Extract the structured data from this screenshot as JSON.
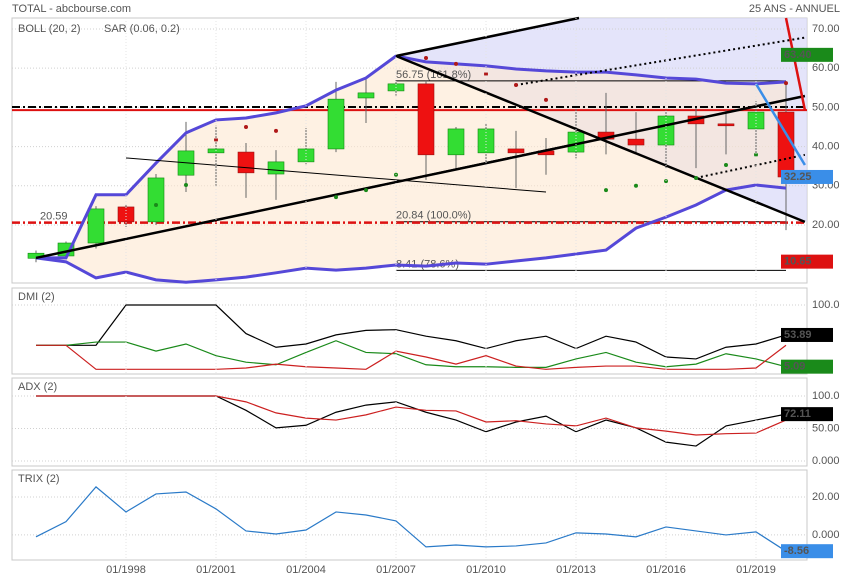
{
  "header": {
    "left": "TOTAL - abcbourse.com",
    "right": "25 ANS - ANNUEL"
  },
  "chart_data": [
    {
      "type": "candlestick",
      "open": [
        11.5,
        12.1,
        15.4,
        24.6,
        20.8,
        32.7,
        38.4,
        38.6,
        33.0,
        36.1,
        39.4,
        52.4,
        54.2,
        56.0,
        37.9,
        38.4,
        39.4,
        38.9,
        38.6,
        43.7,
        41.9,
        40.4,
        47.8,
        45.8,
        44.5,
        48.8
      ],
      "high": [
        13.5,
        15.8,
        24.8,
        25.2,
        33.0,
        46.3,
        45.3,
        40.9,
        39.1,
        44.7,
        56.5,
        57.5,
        57.0,
        56.75,
        45.0,
        45.8,
        44.0,
        42.2,
        49.6,
        53.7,
        48.8,
        49.3,
        49.8,
        49.3,
        51.6,
        56.5
      ],
      "low": [
        10.5,
        11.5,
        14.0,
        19.5,
        20.0,
        28.4,
        30.0,
        26.9,
        26.4,
        35.5,
        38.6,
        46.0,
        53.0,
        31.5,
        34.0,
        35.6,
        29.4,
        32.8,
        37.0,
        38.0,
        38.0,
        34.5,
        34.5,
        38.0,
        38.0,
        18.7
      ],
      "close": [
        12.8,
        15.4,
        24.1,
        20.8,
        32.0,
        38.9,
        39.4,
        33.3,
        36.1,
        39.4,
        52.1,
        53.7,
        56.0,
        37.9,
        44.5,
        44.5,
        38.4,
        37.9,
        43.7,
        41.9,
        40.4,
        47.8,
        45.8,
        45.3,
        48.8,
        32.25
      ],
      "up_color": "#33dd33",
      "down_color": "#ee1111",
      "bollinger": {
        "name": "BOLL (20, 2)",
        "color": "#5548d8",
        "upper": [
          11.6,
          11.6,
          27.7,
          27.7,
          35.8,
          43.5,
          46.8,
          47.3,
          48.6,
          50.4,
          54.4,
          57.5,
          63.1,
          61.6,
          61.1,
          60.6,
          59.8,
          59.3,
          59.0,
          59.0,
          58.3,
          57.5,
          57.2,
          56.2,
          56.0,
          56.5
        ],
        "lower": [
          11.6,
          10.6,
          6.5,
          8.0,
          6.0,
          5.4,
          6.0,
          6.7,
          7.8,
          9.0,
          8.5,
          9.0,
          9.8,
          9.5,
          10.3,
          10.0,
          10.8,
          11.6,
          12.6,
          13.6,
          19.2,
          22.0,
          25.1,
          28.9,
          30.2,
          29.4
        ]
      },
      "sar": {
        "name": "SAR (0.06, 0.2)",
        "color": "#cc2222",
        "values": [
          null,
          null,
          null,
          null,
          25.1,
          30.2,
          41.7,
          45.0,
          44.0,
          null,
          27.1,
          28.9,
          32.8,
          62.6,
          61.1,
          58.5,
          55.7,
          51.9,
          null,
          28.9,
          30.0,
          31.2,
          32.0,
          35.3,
          37.9,
          56.2
        ],
        "point_colors": [
          null,
          null,
          null,
          null,
          "#1a8a1a",
          "#1a8a1a",
          "#b01818",
          "#b01818",
          "#b01818",
          null,
          "#1a8a1a",
          "#1a8a1a",
          "#1a8a1a",
          "#b01818",
          "#b01818",
          "#b01818",
          "#b01818",
          "#b01818",
          null,
          "#1a8a1a",
          "#1a8a1a",
          "#1a8a1a",
          "#1a8a1a",
          "#1a8a1a",
          "#1a8a1a",
          "#b01818"
        ]
      },
      "ylim": [
        5.2,
        72.8
      ],
      "yticks": [
        {
          "value": 70,
          "label": "70.00"
        },
        {
          "value": 60,
          "label": "60.00"
        },
        {
          "value": 50,
          "label": "50.00"
        },
        {
          "value": 40,
          "label": "40.00"
        },
        {
          "value": 30,
          "label": "30.00"
        },
        {
          "value": 20,
          "label": "20.00"
        }
      ],
      "grid": true,
      "levels": [
        {
          "value": 56.75,
          "label": "56.75 (161.8%)",
          "color": "#000000",
          "start": 12,
          "style": "solid"
        },
        {
          "value": 20.84,
          "label": "20.84 (100.0%)",
          "color": "#000000",
          "start": 12,
          "style": "solid"
        },
        {
          "value": 8.41,
          "label": "8.41 (78.6%)",
          "color": "#000000",
          "start": 12,
          "style": "solid"
        },
        {
          "value": 20.59,
          "label": "20.59",
          "color": "#dd1111",
          "start": 0,
          "style": "dashdot"
        }
      ],
      "hlines": [
        {
          "value": 50.1,
          "color": "#000000",
          "style": "dashdot"
        },
        {
          "value": 49.3,
          "color": "#dd1111",
          "style": "solid"
        }
      ],
      "trendlines": [
        {
          "from": [
            0,
            11.6
          ],
          "to": [
            25.63,
            52.9
          ],
          "color": "#000000",
          "style": "thick"
        },
        {
          "from": [
            12,
            63.1
          ],
          "to": [
            18.1,
            72.8
          ],
          "color": "#000000",
          "style": "thick"
        },
        {
          "from": [
            12,
            63.1
          ],
          "to": [
            25.63,
            20.8
          ],
          "color": "#000000",
          "style": "thick"
        },
        {
          "from": [
            16,
            55.7
          ],
          "to": [
            25.63,
            67.8
          ],
          "color": "#000000",
          "style": "dotted"
        },
        {
          "from": [
            22,
            32.0
          ],
          "to": [
            25.63,
            37.9
          ],
          "color": "#000000",
          "style": "dotted"
        },
        {
          "from": [
            3,
            37.1
          ],
          "to": [
            17,
            28.4
          ],
          "color": "#000000",
          "style": "thin"
        },
        {
          "from": [
            0,
            11.6
          ],
          "to": [
            17.8,
            40.5
          ],
          "color": "#000000",
          "style": "thin"
        },
        {
          "from": [
            25,
            72.8
          ],
          "to": [
            25.63,
            49.3
          ],
          "color": "#dd1111",
          "style": "thick"
        },
        {
          "from": [
            24,
            56.0
          ],
          "to": [
            25.63,
            35.3
          ],
          "color": "#3a8ee8",
          "style": "thick"
        }
      ],
      "price_labels": [
        {
          "value": 63.4,
          "label": "63.40",
          "color": "#1a8a1a"
        },
        {
          "value": 32.25,
          "color": "#3a8ee8"
        },
        {
          "value": 10.65,
          "color": "#dd1111"
        }
      ]
    },
    {
      "type": "line",
      "title": "DMI (2)",
      "series": [
        {
          "color": "#000000",
          "values": [
            38,
            38,
            38,
            100,
            100,
            100,
            100,
            56,
            35,
            40,
            54,
            61,
            62,
            52,
            45,
            33,
            45,
            52,
            33,
            52,
            43,
            20,
            17,
            35,
            40,
            53.89
          ]
        },
        {
          "color": "#1a8a1a",
          "values": [
            38,
            38,
            43,
            43,
            29,
            40,
            22,
            12,
            8,
            27,
            45,
            27,
            25,
            8,
            5,
            5,
            4,
            4,
            17,
            27,
            12,
            5,
            9,
            25,
            17,
            5.09
          ]
        },
        {
          "color": "#cc2020",
          "values": [
            38,
            38,
            1,
            1,
            1,
            1,
            1,
            3,
            9,
            5,
            3,
            1,
            29,
            20,
            9,
            22,
            6,
            1,
            4,
            6,
            6,
            1,
            1,
            1,
            3,
            38
          ]
        }
      ],
      "ylim": [
        -6.2,
        126.2
      ],
      "yticks": [
        {
          "value": 100,
          "label": "100.0"
        }
      ],
      "grid": true,
      "price_labels": [
        {
          "value": 53.89,
          "color": "#000000"
        },
        {
          "value": 5.09,
          "color": "#1a8a1a"
        }
      ]
    },
    {
      "type": "line",
      "title": "ADX (2)",
      "series": [
        {
          "color": "#000000",
          "values": [
            100,
            100,
            100,
            100,
            100,
            100,
            100,
            78,
            51,
            55,
            75,
            86,
            91,
            75,
            63,
            45,
            60,
            69,
            45,
            63,
            51,
            29,
            23,
            54,
            63,
            72.11
          ]
        },
        {
          "color": "#cc2020",
          "values": [
            100,
            100,
            100,
            100,
            100,
            100,
            100,
            91,
            74,
            66,
            63,
            71,
            83,
            78,
            77,
            60,
            62,
            57,
            54,
            66,
            51,
            46,
            40,
            42,
            43,
            63
          ]
        }
      ],
      "ylim": [
        -7.7,
        127.7
      ],
      "yticks": [
        {
          "value": 100,
          "label": "100.0"
        },
        {
          "value": 50,
          "label": "50.00"
        },
        {
          "value": 0,
          "label": "0.000"
        }
      ],
      "grid": true,
      "price_labels": [
        {
          "value": 72.11,
          "color": "#000000"
        }
      ]
    },
    {
      "type": "line",
      "title": "TRIX (2)",
      "categories": [
        null,
        null,
        null,
        "01/1998",
        null,
        null,
        "01/2001",
        null,
        null,
        "01/2004",
        null,
        null,
        "01/2007",
        null,
        null,
        "01/2010",
        null,
        null,
        "01/2013",
        null,
        null,
        "01/2016",
        null,
        null,
        "01/2019",
        null
      ],
      "series": [
        {
          "color": "#2a7ac8",
          "values": [
            -1,
            7,
            25.3,
            12.1,
            21.6,
            22.6,
            13.7,
            2.1,
            0.5,
            2.6,
            12.1,
            10.5,
            7.4,
            -6.3,
            -5.3,
            -6.3,
            -5.8,
            -4.2,
            1.1,
            0.5,
            -1,
            4.2,
            2.1,
            0,
            1.6,
            -8.56
          ]
        }
      ],
      "ylim": [
        -13.2,
        34.2
      ],
      "yticks": [
        {
          "value": 20,
          "label": "20.00"
        },
        {
          "value": 0,
          "label": "0.000"
        }
      ],
      "grid": true,
      "price_labels": [
        {
          "value": -8.56,
          "color": "#3a8ee8"
        }
      ]
    }
  ]
}
